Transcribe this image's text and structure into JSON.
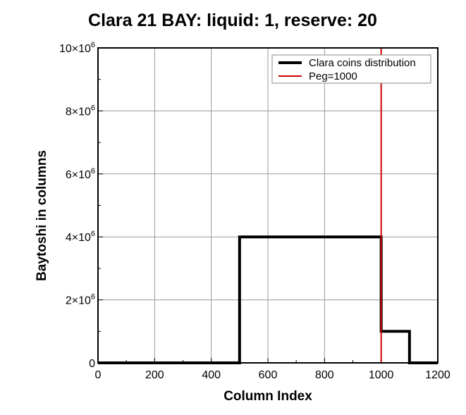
{
  "chart_data": {
    "type": "line",
    "title": "Clara 21 BAY: liquid: 1, reserve: 20",
    "xlabel": "Column Index",
    "ylabel": "Baytoshi in columns",
    "xlim": [
      0,
      1200
    ],
    "ylim": [
      0,
      10000000
    ],
    "xticks": [
      0,
      200,
      400,
      600,
      800,
      1000,
      1200
    ],
    "xtick_labels": [
      "0",
      "200",
      "400",
      "600",
      "800",
      "1000",
      "1200"
    ],
    "yticks": [
      0,
      2000000,
      4000000,
      6000000,
      8000000,
      10000000
    ],
    "ytick_labels": [
      {
        "base": "0",
        "exp": ""
      },
      {
        "base": "2×10",
        "exp": "6"
      },
      {
        "base": "4×10",
        "exp": "6"
      },
      {
        "base": "6×10",
        "exp": "6"
      },
      {
        "base": "8×10",
        "exp": "6"
      },
      {
        "base": "10×10",
        "exp": "6"
      }
    ],
    "grid": true,
    "legend_position": "top-right",
    "series": [
      {
        "name": "Clara coins distribution",
        "color": "#000000",
        "x": [
          0,
          500,
          500,
          1000,
          1000,
          1100,
          1100,
          1200
        ],
        "y": [
          0,
          0,
          4000000,
          4000000,
          1000000,
          1000000,
          0,
          0
        ]
      }
    ],
    "vlines": [
      {
        "name": "Peg=1000",
        "x": 1000,
        "color": "#cc0000"
      }
    ]
  }
}
